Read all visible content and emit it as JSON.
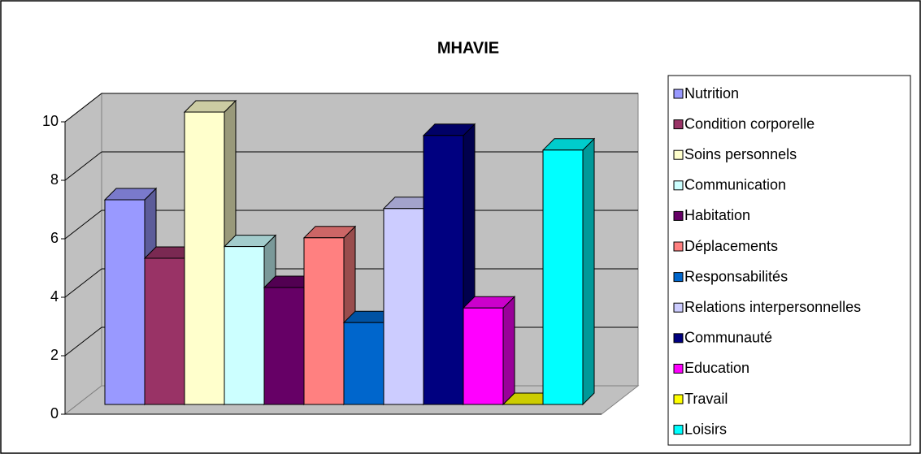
{
  "chart_data": {
    "type": "bar",
    "title": "MHAVIE",
    "categories": [
      "Nutrition",
      "Condition corporelle",
      "Soins personnels",
      "Communication",
      "Habitation",
      "Déplacements",
      "Responsabilités",
      "Relations interpersonnelles",
      "Communauté",
      "Education",
      "Travail",
      "Loisirs"
    ],
    "values": [
      7,
      5,
      10,
      5.4,
      4,
      5.7,
      2.8,
      6.7,
      9.2,
      3.3,
      0,
      8.7
    ],
    "colors": [
      "#9999ff",
      "#993366",
      "#ffffcc",
      "#ccffff",
      "#660066",
      "#ff8080",
      "#0066cc",
      "#ccccff",
      "#000080",
      "#ff00ff",
      "#ffff00",
      "#00ffff"
    ],
    "ylim": [
      0,
      10
    ],
    "yticks": [
      0,
      2,
      4,
      6,
      8,
      10
    ],
    "grid": true,
    "legend": "right"
  }
}
